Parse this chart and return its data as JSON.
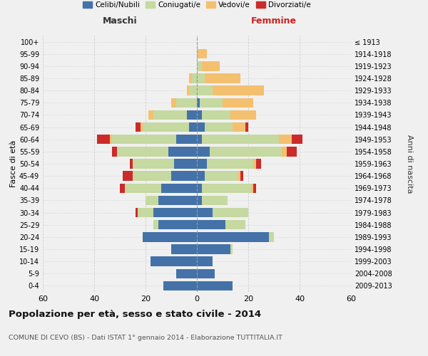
{
  "age_groups": [
    "0-4",
    "5-9",
    "10-14",
    "15-19",
    "20-24",
    "25-29",
    "30-34",
    "35-39",
    "40-44",
    "45-49",
    "50-54",
    "55-59",
    "60-64",
    "65-69",
    "70-74",
    "75-79",
    "80-84",
    "85-89",
    "90-94",
    "95-99",
    "100+"
  ],
  "birth_years": [
    "2009-2013",
    "2004-2008",
    "1999-2003",
    "1994-1998",
    "1989-1993",
    "1984-1988",
    "1979-1983",
    "1974-1978",
    "1969-1973",
    "1964-1968",
    "1959-1963",
    "1954-1958",
    "1949-1953",
    "1944-1948",
    "1939-1943",
    "1934-1938",
    "1929-1933",
    "1924-1928",
    "1919-1923",
    "1914-1918",
    "≤ 1913"
  ],
  "male": {
    "celibi": [
      13,
      8,
      18,
      10,
      21,
      15,
      17,
      15,
      14,
      10,
      9,
      11,
      8,
      3,
      4,
      0,
      0,
      0,
      0,
      0,
      0
    ],
    "coniugati": [
      0,
      0,
      0,
      0,
      0,
      2,
      6,
      5,
      14,
      15,
      16,
      20,
      25,
      18,
      13,
      8,
      3,
      2,
      0,
      0,
      0
    ],
    "vedovi": [
      0,
      0,
      0,
      0,
      0,
      0,
      0,
      0,
      0,
      0,
      0,
      0,
      1,
      1,
      2,
      2,
      1,
      1,
      0,
      0,
      0
    ],
    "divorziati": [
      0,
      0,
      0,
      0,
      0,
      0,
      1,
      0,
      2,
      4,
      1,
      2,
      5,
      2,
      0,
      0,
      0,
      0,
      0,
      0,
      0
    ]
  },
  "female": {
    "nubili": [
      14,
      7,
      6,
      13,
      28,
      11,
      6,
      2,
      2,
      3,
      4,
      5,
      2,
      3,
      2,
      1,
      0,
      0,
      0,
      0,
      0
    ],
    "coniugate": [
      0,
      0,
      0,
      1,
      2,
      8,
      14,
      10,
      19,
      13,
      18,
      28,
      30,
      11,
      11,
      9,
      6,
      3,
      2,
      0,
      0
    ],
    "vedove": [
      0,
      0,
      0,
      0,
      0,
      0,
      0,
      0,
      1,
      1,
      1,
      2,
      5,
      5,
      10,
      12,
      20,
      14,
      7,
      4,
      0
    ],
    "divorziate": [
      0,
      0,
      0,
      0,
      0,
      0,
      0,
      0,
      1,
      1,
      2,
      4,
      4,
      1,
      0,
      0,
      0,
      0,
      0,
      0,
      0
    ]
  },
  "colors": {
    "celibi": "#4472a8",
    "coniugati": "#c5d9a0",
    "vedovi": "#f4c06f",
    "divorziati": "#cc2b2b"
  },
  "xlim": 60,
  "title": "Popolazione per età, sesso e stato civile - 2014",
  "subtitle": "COMUNE DI CEVO (BS) - Dati ISTAT 1° gennaio 2014 - Elaborazione TUTTITALIA.IT",
  "ylabel_left": "Fasce di età",
  "ylabel_right": "Anni di nascita",
  "xlabel_left": "Maschi",
  "xlabel_right": "Femmine",
  "legend_labels": [
    "Celibi/Nubili",
    "Coniugati/e",
    "Vedovi/e",
    "Divorziati/e"
  ],
  "background_color": "#f0f0f0"
}
